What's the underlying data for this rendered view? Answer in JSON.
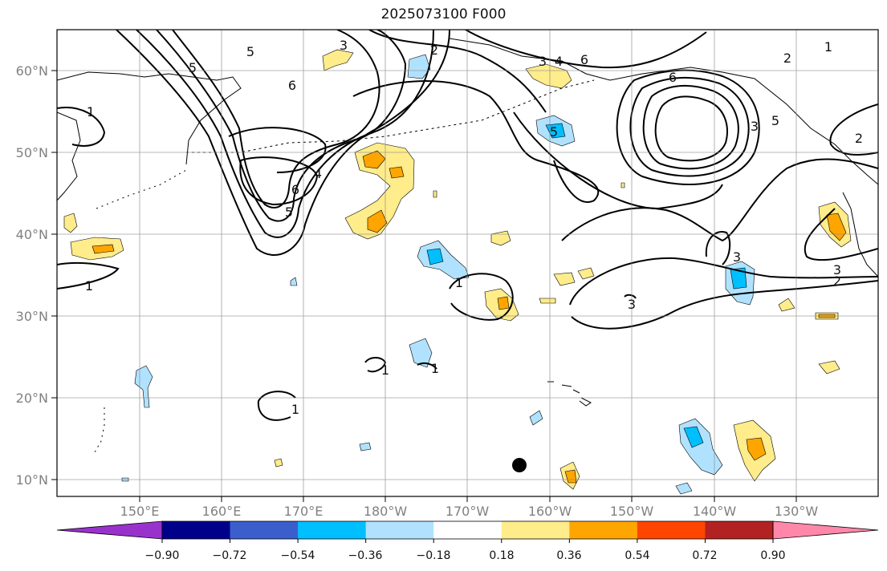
{
  "title": "2025073100 F000",
  "lon_labels": [
    "150°E",
    "160°E",
    "170°E",
    "180°W",
    "170°W",
    "160°W",
    "150°W",
    "140°W",
    "130°W"
  ],
  "lat_labels": [
    "60°N",
    "50°N",
    "40°N",
    "30°N",
    "20°N",
    "10°N"
  ],
  "colorbar": {
    "tick_labels": [
      "−0.90",
      "−0.72",
      "−0.54",
      "−0.36",
      "−0.18",
      "0.18",
      "0.36",
      "0.54",
      "0.72",
      "0.90"
    ],
    "colors": [
      "#9932cc",
      "#00008b",
      "#3a5fcd",
      "#00bfff",
      "#b0e2ff",
      "#ffffff",
      "#ffec8b",
      "#ffa500",
      "#ff4500",
      "#b22222",
      "#ff88aa"
    ]
  },
  "contour_labels": [
    "1",
    "1",
    "1",
    "1",
    "1",
    "1",
    "1",
    "2",
    "2",
    "2",
    "2",
    "3",
    "3",
    "3",
    "3",
    "3",
    "3",
    "4",
    "4",
    "5",
    "5",
    "5",
    "5",
    "5",
    "6",
    "6",
    "6",
    "6"
  ],
  "fill_colors": {
    "light_yellow": "#ffec8b",
    "orange": "#ffa500",
    "light_blue": "#b0e2ff",
    "cyan": "#00bfff"
  }
}
